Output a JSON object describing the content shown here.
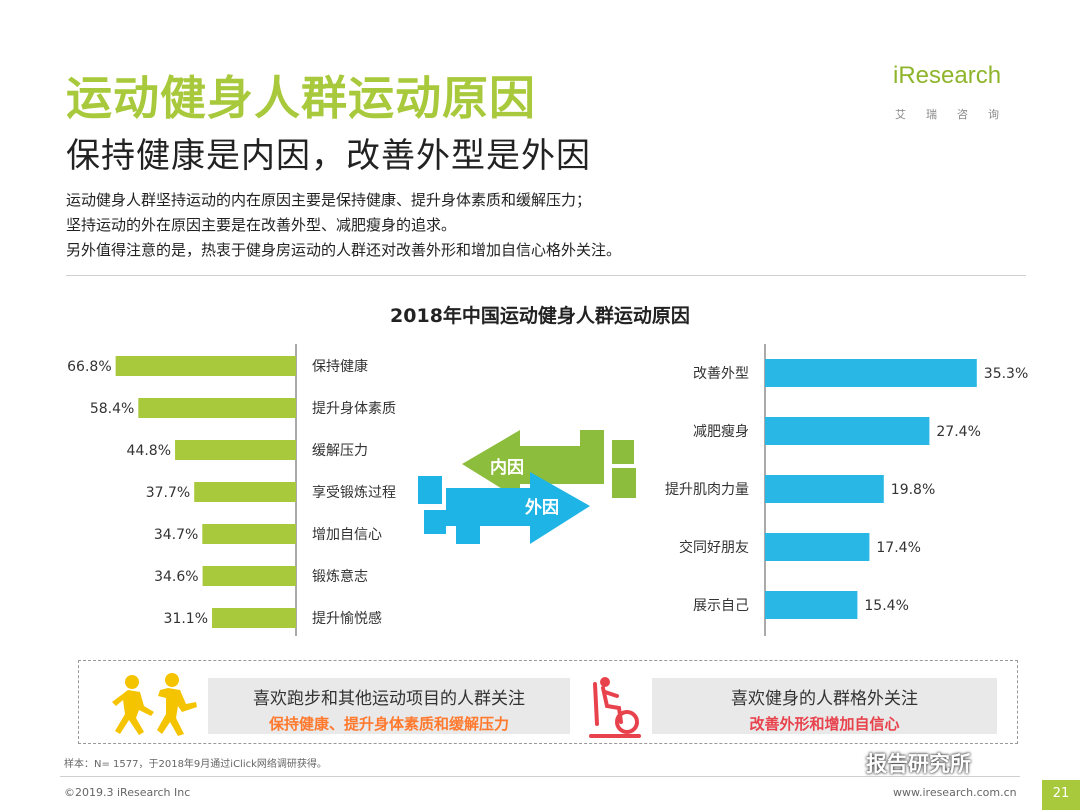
{
  "header": {
    "title": "运动健身人群运动原因",
    "subtitle": "保持健康是内因，改善外型是外因",
    "paragraphs": [
      "运动健身人群坚持运动的内在原因主要是保持健康、提升身体素质和缓解压力；",
      "坚持运动的外在原因主要是在改善外型、减肥瘦身的追求。",
      "另外值得注意的是，热衷于健身房运动的人群还对改善外形和增加自信心格外关注。"
    ]
  },
  "logo": {
    "main": "iResearch",
    "sub": "艾瑞咨询"
  },
  "colors": {
    "green": "#a9c93c",
    "blue": "#29b8e5",
    "orange": "#ff7a2f",
    "red": "#e8434d"
  },
  "center_arrows": {
    "inner": "内因",
    "outer": "外因"
  },
  "chart_data": {
    "type": "bar",
    "title": "2018年中国运动健身人群运动原因",
    "left": {
      "label": "内因",
      "categories": [
        "保持健康",
        "提升身体素质",
        "缓解压力",
        "享受锻炼过程",
        "增加自信心",
        "锻炼意志",
        "提升愉悦感"
      ],
      "values": [
        66.8,
        58.4,
        44.8,
        37.7,
        34.7,
        34.6,
        31.1
      ],
      "value_labels": [
        "66.8%",
        "58.4%",
        "44.8%",
        "37.7%",
        "34.7%",
        "34.6%",
        "31.1%"
      ]
    },
    "right": {
      "label": "外因",
      "categories": [
        "改善外型",
        "减肥瘦身",
        "提升肌肉力量",
        "交同好朋友",
        "展示自己"
      ],
      "values": [
        35.3,
        27.4,
        19.8,
        17.4,
        15.4
      ],
      "value_labels": [
        "35.3%",
        "27.4%",
        "19.8%",
        "17.4%",
        "15.4%"
      ]
    }
  },
  "bottom": {
    "panel1": {
      "line1": "喜欢跑步和其他运动项目的人群关注",
      "line2": "保持健康、提升身体素质和缓解压力"
    },
    "panel2": {
      "line1": "喜欢健身的人群格外关注",
      "line2": "改善外形和增加自信心"
    }
  },
  "footer": {
    "note": "样本：N= 1577，于2018年9月通过iClick网络调研获得。",
    "copyright": "©2019.3 iResearch Inc",
    "url": "www.iresearch.com.cn",
    "page": "21",
    "watermark": "报告研究所"
  }
}
